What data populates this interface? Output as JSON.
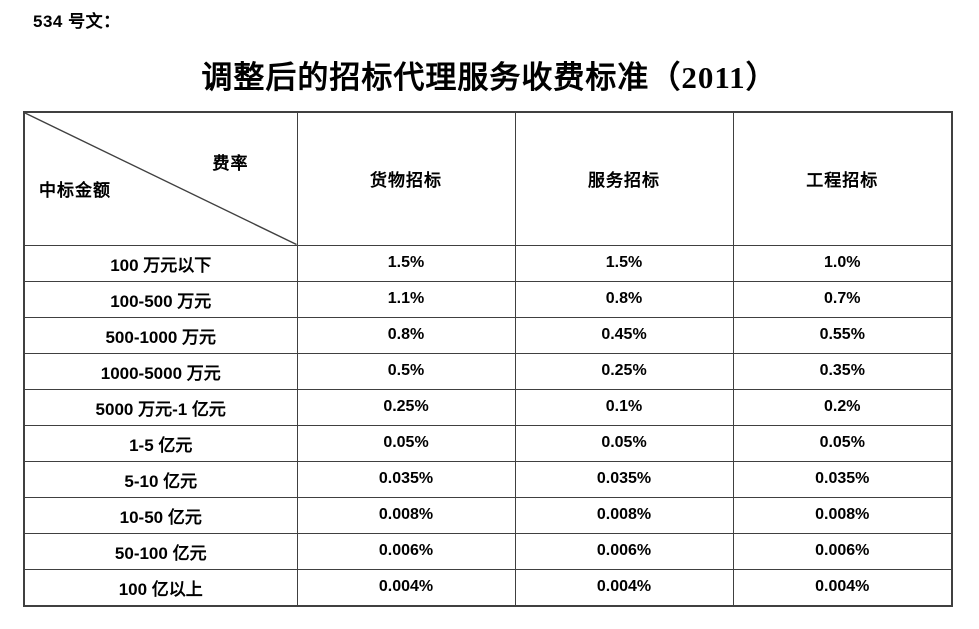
{
  "page": {
    "doc_number": "534 号文：",
    "title": "调整后的招标代理服务收费标准（2011）"
  },
  "table": {
    "corner_top_right": "费率",
    "corner_bottom_left": "中标金额",
    "columns": [
      "货物招标",
      "服务招标",
      "工程招标"
    ],
    "rows": [
      {
        "label": "100 万元以下",
        "values": [
          "1.5%",
          "1.5%",
          "1.0%"
        ]
      },
      {
        "label": "100-500 万元",
        "values": [
          "1.1%",
          "0.8%",
          "0.7%"
        ]
      },
      {
        "label": "500-1000 万元",
        "values": [
          "0.8%",
          "0.45%",
          "0.55%"
        ]
      },
      {
        "label": "1000-5000 万元",
        "values": [
          "0.5%",
          "0.25%",
          "0.35%"
        ]
      },
      {
        "label": "5000 万元-1 亿元",
        "values": [
          "0.25%",
          "0.1%",
          "0.2%"
        ]
      },
      {
        "label": "1-5 亿元",
        "values": [
          "0.05%",
          "0.05%",
          "0.05%"
        ]
      },
      {
        "label": "5-10 亿元",
        "values": [
          "0.035%",
          "0.035%",
          "0.035%"
        ]
      },
      {
        "label": "10-50 亿元",
        "values": [
          "0.008%",
          "0.008%",
          "0.008%"
        ]
      },
      {
        "label": "50-100 亿元",
        "values": [
          "0.006%",
          "0.006%",
          "0.006%"
        ]
      },
      {
        "label": "100 亿以上",
        "values": [
          "0.004%",
          "0.004%",
          "0.004%"
        ]
      }
    ]
  },
  "colors": {
    "background": "#ffffff",
    "text": "#000000",
    "table_border": "#404040"
  }
}
